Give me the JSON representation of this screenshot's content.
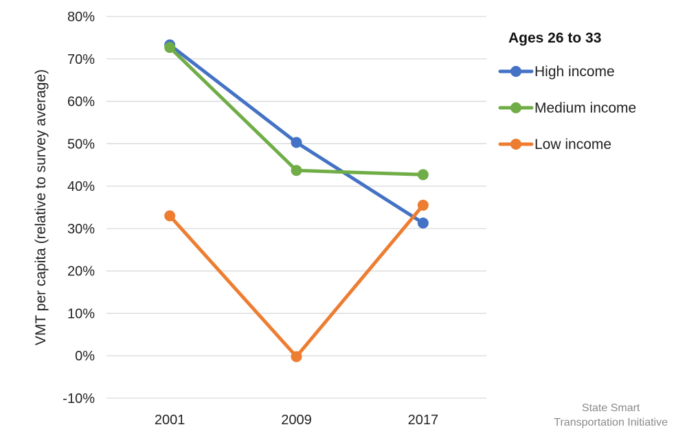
{
  "chart_data": {
    "type": "line",
    "title": "",
    "xlabel": "",
    "ylabel": "VMT per capita (relative to survey average)",
    "categories": [
      "2001",
      "2009",
      "2017"
    ],
    "ylim": [
      -10,
      80
    ],
    "yticks": [
      -10,
      0,
      10,
      20,
      30,
      40,
      50,
      60,
      70,
      80
    ],
    "ytick_labels": [
      "-10%",
      "0%",
      "10%",
      "20%",
      "30%",
      "40%",
      "50%",
      "60%",
      "70%",
      "80%"
    ],
    "grid": true,
    "legend": {
      "title": "Ages 26 to 33",
      "placement": "right"
    },
    "series": [
      {
        "name": "High income",
        "color": "#4472C4",
        "values": [
          73.3,
          50.3,
          31.3
        ]
      },
      {
        "name": "Medium income",
        "color": "#70AD47",
        "values": [
          72.7,
          43.7,
          42.7
        ]
      },
      {
        "name": "Low income",
        "color": "#ED7D31",
        "values": [
          33.0,
          -0.2,
          35.5
        ]
      }
    ]
  },
  "credit": {
    "line1": "State Smart",
    "line2": "Transportation Initiative"
  }
}
